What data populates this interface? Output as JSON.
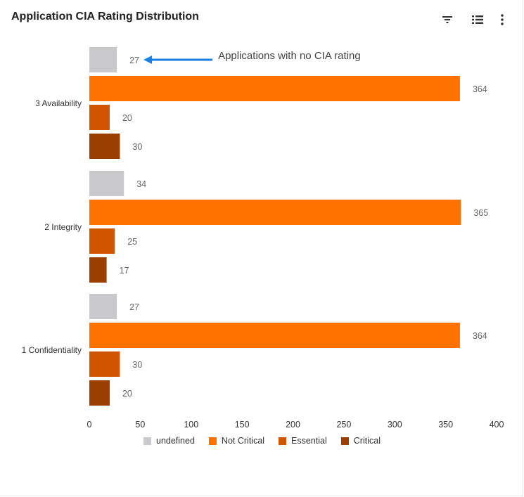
{
  "header": {
    "title": "Application CIA Rating Distribution",
    "filter_icon": "filter-icon",
    "legend_icon": "list-legend-icon",
    "menu_icon": "more-vertical-icon"
  },
  "chart_data": {
    "type": "bar",
    "orientation": "horizontal",
    "title": "Application CIA Rating Distribution",
    "categories": [
      "3 Availability",
      "2 Integrity",
      "1 Confidentiality"
    ],
    "series": [
      {
        "name": "undefined",
        "color": "#c9c9cb",
        "values": [
          27,
          34,
          27
        ]
      },
      {
        "name": "Not Critical",
        "color": "#ff7200",
        "values": [
          364,
          365,
          364
        ]
      },
      {
        "name": "Essential",
        "color": "#d15400",
        "values": [
          20,
          25,
          30
        ]
      },
      {
        "name": "Critical",
        "color": "#9b3f00",
        "values": [
          30,
          17,
          20
        ]
      }
    ],
    "xlim": [
      0,
      400
    ],
    "xticks": [
      0,
      50,
      100,
      150,
      200,
      250,
      300,
      350,
      400
    ],
    "grid": false,
    "legend_position": "bottom",
    "annotation": {
      "text": "Applications with no CIA rating",
      "target_category": "3 Availability",
      "target_series": "undefined",
      "color": "#1a7fe0"
    }
  }
}
